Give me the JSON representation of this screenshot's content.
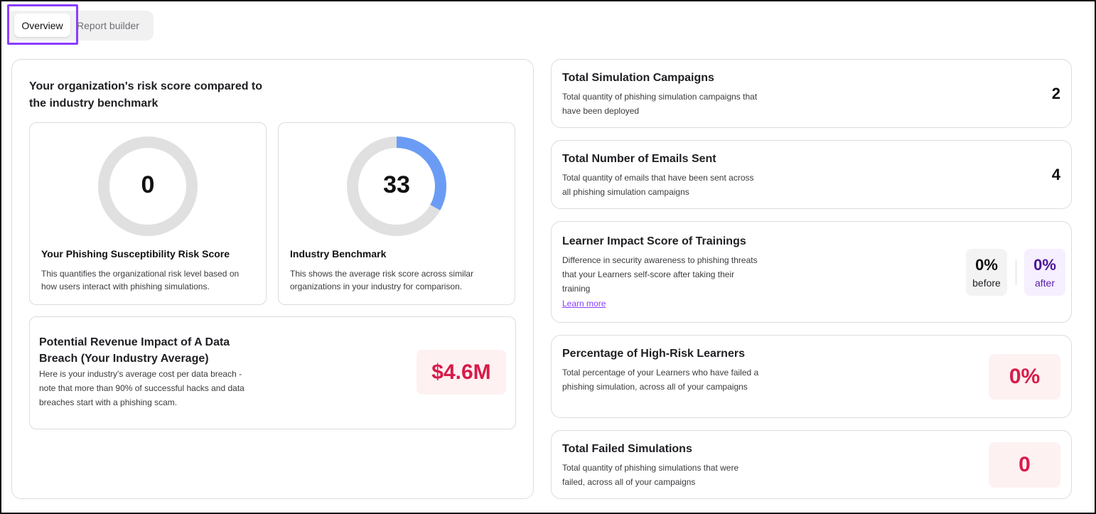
{
  "tabs": {
    "overview": "Overview",
    "report_builder": "Report builder"
  },
  "risk_panel": {
    "title": "Your organization's risk score compared to the industry benchmark",
    "your_score": {
      "value": "0",
      "percent": 0,
      "title": "Your Phishing Susceptibility Risk Score",
      "description": "This quantifies the organizational risk level based on how users interact with phishing simulations."
    },
    "industry": {
      "value": "33",
      "percent": 33,
      "title": "Industry Benchmark",
      "description": "This shows the average risk score across similar organizations in your industry for comparison."
    },
    "ring_track_color": "#e0e0e0",
    "ring_fill_color": "#6b9cf5"
  },
  "revenue": {
    "title": "Potential Revenue Impact of A Data Breach (Your Industry Average)",
    "description": "Here is your industry's average cost per data breach - note that more than 90% of successful hacks and data breaches start with a phishing scam.",
    "value": "$4.6M"
  },
  "stats": {
    "campaigns": {
      "title": "Total Simulation Campaigns",
      "description": "Total quantity of phishing simulation campaigns that have been deployed",
      "value": "2"
    },
    "emails": {
      "title": "Total Number of Emails Sent",
      "description": "Total quantity of emails that have been sent across all phishing simulation campaigns",
      "value": "4"
    },
    "learner_impact": {
      "title": "Learner Impact Score of Trainings",
      "description": "Difference in security awareness to phishing threats that your Learners self-score after taking their training",
      "learn_more": "Learn more",
      "before_value": "0%",
      "before_label": "before",
      "after_value": "0%",
      "after_label": "after"
    },
    "high_risk": {
      "title": "Percentage of High-Risk Learners",
      "description": "Total percentage of your Learners who have failed a phishing simulation, across all of your campaigns",
      "value": "0%"
    },
    "failed": {
      "title": "Total Failed Simulations",
      "description": "Total quantity of phishing simulations that were failed, across all of your campaigns",
      "value": "0"
    }
  },
  "colors": {
    "accent": "#8b3dff",
    "danger": "#d81b4a",
    "danger_bg": "#fdf1f1",
    "after_text": "#5a1aa8"
  }
}
